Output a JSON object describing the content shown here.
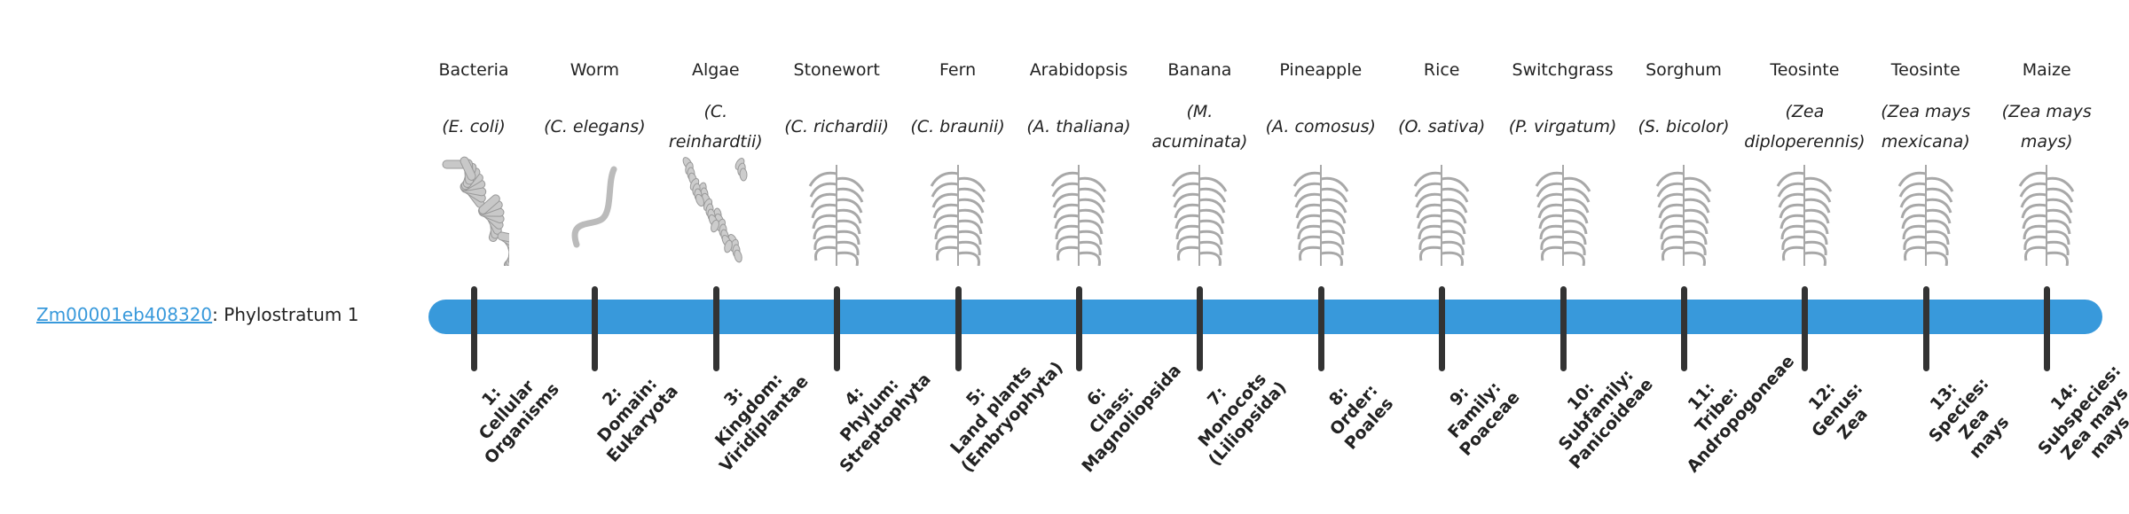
{
  "gene": {
    "id": "Zm00001eb408320",
    "suffix": ": Phylostratum 1"
  },
  "colors": {
    "bar": "#3899db",
    "tick": "#333333",
    "link": "#3899db"
  },
  "strata": [
    {
      "common": "Bacteria",
      "sci": "(E. coli)",
      "icon": "bacteria-icon",
      "rank_lines": [
        "1:",
        "Cellular",
        "Organisms"
      ]
    },
    {
      "common": "Worm",
      "sci": "(C. elegans)",
      "icon": "worm-icon",
      "rank_lines": [
        "2:",
        "Domain:",
        "Eukaryota"
      ]
    },
    {
      "common": "Algae",
      "sci": "(C. reinhardtii)",
      "icon": "algae-icon",
      "rank_lines": [
        "3:",
        "Kingdom:",
        "Viridiplantae"
      ]
    },
    {
      "common": "Stonewort",
      "sci": "(C. richardii)",
      "icon": "stonewort-icon",
      "rank_lines": [
        "4:",
        "Phylum:",
        "Streptophyta"
      ]
    },
    {
      "common": "Fern",
      "sci": "(C. braunii)",
      "icon": "fern-icon",
      "rank_lines": [
        "5:",
        "Land plants",
        "(Embryophyta)"
      ]
    },
    {
      "common": "Arabidopsis",
      "sci": "(A. thaliana)",
      "icon": "arabidopsis-icon",
      "rank_lines": [
        "6:",
        "Class:",
        "Magnoliopsida"
      ]
    },
    {
      "common": "Banana",
      "sci": "(M. acuminata)",
      "icon": "banana-icon",
      "rank_lines": [
        "7:",
        "Monocots",
        "(Liliopsida)"
      ]
    },
    {
      "common": "Pineapple",
      "sci": "(A. comosus)",
      "icon": "pineapple-icon",
      "rank_lines": [
        "8:",
        "Order:",
        "Poales"
      ]
    },
    {
      "common": "Rice",
      "sci": "(O. sativa)",
      "icon": "rice-icon",
      "rank_lines": [
        "9:",
        "Family:",
        "Poaceae"
      ]
    },
    {
      "common": "Switchgrass",
      "sci": "(P. virgatum)",
      "icon": "switchgrass-icon",
      "rank_lines": [
        "10:",
        "Subfamily:",
        "Panicoideae"
      ]
    },
    {
      "common": "Sorghum",
      "sci": "(S. bicolor)",
      "icon": "sorghum-icon",
      "rank_lines": [
        "11:",
        "Tribe:",
        "Andropogoneae"
      ]
    },
    {
      "common": "Teosinte",
      "sci": "(Zea diploperennis)",
      "icon": "teosinte-icon",
      "rank_lines": [
        "12:",
        "Genus:",
        "Zea"
      ]
    },
    {
      "common": "Teosinte",
      "sci": "(Zea mays mexicana)",
      "icon": "teosinte-icon",
      "rank_lines": [
        "13:",
        "Species:",
        "Zea",
        "mays"
      ]
    },
    {
      "common": "Maize",
      "sci": "(Zea mays mays)",
      "icon": "maize-icon",
      "rank_lines": [
        "14:",
        "Subspecies:",
        "Zea mays",
        "mays"
      ]
    }
  ]
}
